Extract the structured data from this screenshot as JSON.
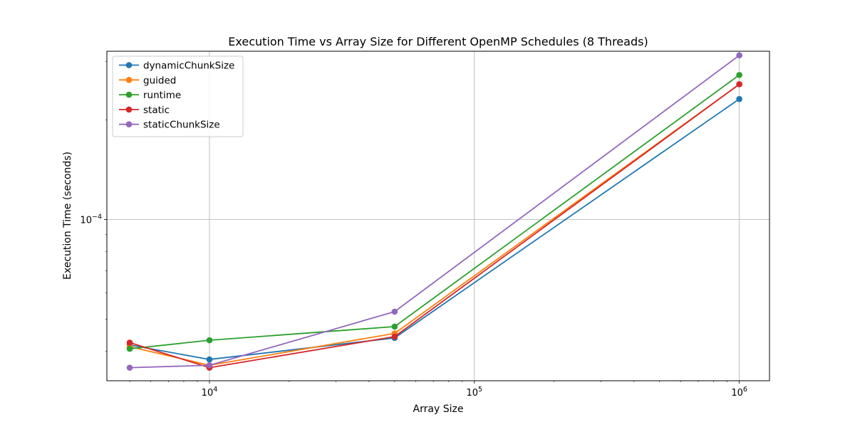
{
  "chart_data": {
    "type": "line",
    "title": "Execution Time vs Array Size for Different OpenMP Schedules (8 Threads)",
    "xlabel": "Array Size",
    "ylabel": "Execution Time (seconds)",
    "xscale": "log",
    "yscale": "log",
    "xlim": [
      4100,
      1300000
    ],
    "ylim": [
      3.26e-05,
      0.000322
    ],
    "grid": true,
    "legend_position": "upper-left",
    "x": [
      5000,
      10000,
      50000,
      1000000
    ],
    "xticks": [
      {
        "value": 10000,
        "base": "10",
        "exp": "4"
      },
      {
        "value": 100000,
        "base": "10",
        "exp": "5"
      },
      {
        "value": 1000000,
        "base": "10",
        "exp": "6"
      }
    ],
    "yticks": [
      {
        "value": 0.0001,
        "base": "10",
        "exp": "−4"
      }
    ],
    "series": [
      {
        "name": "dynamicChunkSize",
        "color": "#1f77b4",
        "values": [
          4.18e-05,
          3.78e-05,
          4.39e-05,
          0.000231
        ]
      },
      {
        "name": "guided",
        "color": "#ff7f0e",
        "values": [
          4.13e-05,
          3.63e-05,
          4.53e-05,
          0.000256
        ]
      },
      {
        "name": "runtime",
        "color": "#2ca02c",
        "values": [
          4.07e-05,
          4.32e-05,
          4.75e-05,
          0.000273
        ]
      },
      {
        "name": "static",
        "color": "#d62728",
        "values": [
          4.25e-05,
          3.57e-05,
          4.43e-05,
          0.000256
        ]
      },
      {
        "name": "staticChunkSize",
        "color": "#9467bd",
        "values": [
          3.57e-05,
          3.63e-05,
          5.27e-05,
          0.000313
        ]
      }
    ]
  }
}
